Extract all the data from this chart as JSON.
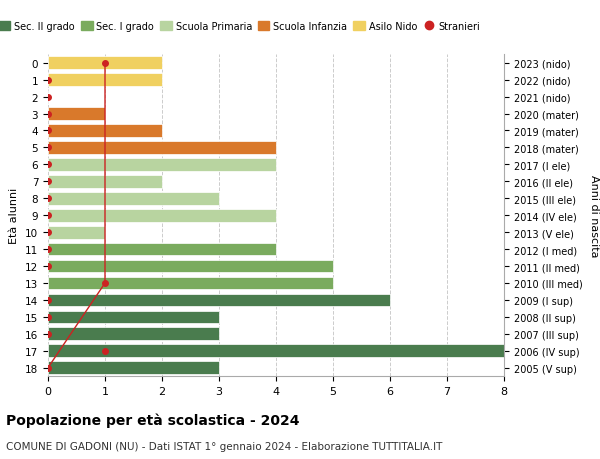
{
  "ages": [
    18,
    17,
    16,
    15,
    14,
    13,
    12,
    11,
    10,
    9,
    8,
    7,
    6,
    5,
    4,
    3,
    2,
    1,
    0
  ],
  "labels_right": [
    "2005 (V sup)",
    "2006 (IV sup)",
    "2007 (III sup)",
    "2008 (II sup)",
    "2009 (I sup)",
    "2010 (III med)",
    "2011 (II med)",
    "2012 (I med)",
    "2013 (V ele)",
    "2014 (IV ele)",
    "2015 (III ele)",
    "2016 (II ele)",
    "2017 (I ele)",
    "2018 (mater)",
    "2019 (mater)",
    "2020 (mater)",
    "2021 (nido)",
    "2022 (nido)",
    "2023 (nido)"
  ],
  "bar_values": [
    3,
    8,
    3,
    3,
    6,
    5,
    5,
    4,
    1,
    4,
    3,
    2,
    4,
    4,
    2,
    1,
    0,
    2,
    2
  ],
  "bar_colors": [
    "#4a7c4e",
    "#4a7c4e",
    "#4a7c4e",
    "#4a7c4e",
    "#4a7c4e",
    "#7aab5e",
    "#7aab5e",
    "#7aab5e",
    "#b8d4a0",
    "#b8d4a0",
    "#b8d4a0",
    "#b8d4a0",
    "#b8d4a0",
    "#d9792b",
    "#d9792b",
    "#d9792b",
    "#f0d060",
    "#f0d060",
    "#f0d060"
  ],
  "stranieri_ages": [
    18,
    17,
    16,
    15,
    14,
    13,
    12,
    11,
    10,
    9,
    8,
    7,
    6,
    5,
    4,
    3,
    2,
    1,
    0
  ],
  "stranieri_x": [
    0,
    1,
    0,
    0,
    0,
    1,
    0,
    0,
    0,
    0,
    0,
    0,
    0,
    0,
    0,
    0,
    0,
    0,
    1
  ],
  "stranieri_line_ages": [
    18,
    13,
    0
  ],
  "stranieri_line_x": [
    0,
    1,
    1
  ],
  "title": "Popolazione per età scolastica - 2024",
  "subtitle": "COMUNE DI GADONI (NU) - Dati ISTAT 1° gennaio 2024 - Elaborazione TUTTITALIA.IT",
  "ylabel_left": "Età alunni",
  "ylabel_right": "Anni di nascita",
  "xlim": [
    0,
    8
  ],
  "legend_labels": [
    "Sec. II grado",
    "Sec. I grado",
    "Scuola Primaria",
    "Scuola Infanzia",
    "Asilo Nido",
    "Stranieri"
  ],
  "legend_colors": [
    "#4a7c4e",
    "#7aab5e",
    "#b8d4a0",
    "#d9792b",
    "#f0d060",
    "#cc2222"
  ],
  "bar_height": 0.75,
  "grid_color": "#cccccc",
  "stranieri_color": "#cc2222",
  "stranieri_line_color": "#cc2222",
  "bg_color": "#ffffff"
}
